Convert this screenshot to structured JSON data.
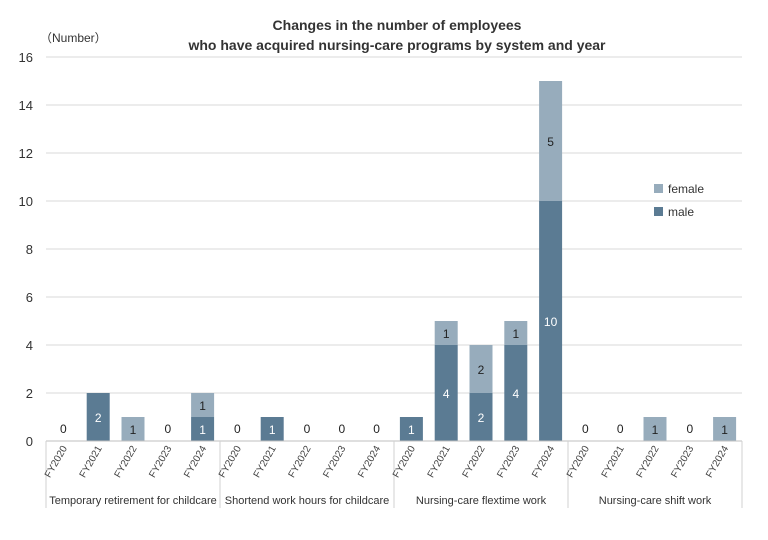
{
  "chart_data": {
    "type": "bar",
    "stacked": true,
    "title_line1": "Changes in the number of employees",
    "title_line2": "who have acquired nursing-care programs by system and year",
    "unit_label": "（Number）",
    "ylim": [
      0,
      16
    ],
    "yticks": [
      "0",
      "2",
      "4",
      "6",
      "8",
      "10",
      "12",
      "14",
      "16"
    ],
    "grid": true,
    "legend_position": "right",
    "colors": {
      "male": "#5b7b93",
      "female": "#97acbc"
    },
    "groups": [
      {
        "name": "Temporary retirement for childcare",
        "categories": [
          "FY2020",
          "FY2021",
          "FY2022",
          "FY2023",
          "FY2024"
        ],
        "male": [
          0,
          2,
          0,
          0,
          1
        ],
        "female": [
          0,
          0,
          1,
          0,
          1
        ]
      },
      {
        "name": "Shortend work hours for childcare",
        "categories": [
          "FY2020",
          "FY2021",
          "FY2022",
          "FY2023",
          "FY2024"
        ],
        "male": [
          0,
          1,
          0,
          0,
          0
        ],
        "female": [
          0,
          0,
          0,
          0,
          0
        ]
      },
      {
        "name": "Nursing-care flextime work",
        "categories": [
          "FY2020",
          "FY2021",
          "FY2022",
          "FY2023",
          "FY2024"
        ],
        "male": [
          1,
          4,
          2,
          4,
          10
        ],
        "female": [
          0,
          1,
          2,
          1,
          5
        ]
      },
      {
        "name": "Nursing-care shift work",
        "categories": [
          "FY2020",
          "FY2021",
          "FY2022",
          "FY2023",
          "FY2024"
        ],
        "male": [
          0,
          0,
          0,
          0,
          0
        ],
        "female": [
          0,
          0,
          1,
          0,
          1
        ]
      }
    ],
    "legend": [
      {
        "key": "female",
        "label": "female"
      },
      {
        "key": "male",
        "label": "male"
      }
    ]
  }
}
